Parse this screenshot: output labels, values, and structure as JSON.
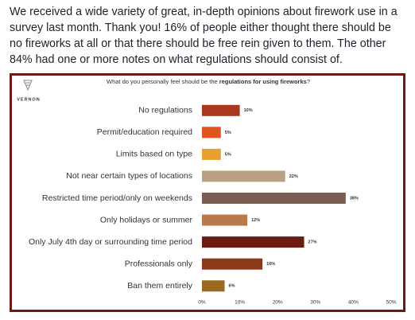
{
  "post": {
    "text": "We received a wide variety of great, in-depth opinions about firework use in a survey last month. Thank you! 16% of people either thought there should be no fireworks at all or that there should be free rein given to them. The other 84% had one or more notes on what regulations should consist of."
  },
  "logo": {
    "text": "VERNON"
  },
  "chart_data": {
    "type": "bar",
    "orientation": "horizontal",
    "title": [
      "What do you personally feel should be the ",
      "regulations for using fireworks",
      "?"
    ],
    "categories": [
      "No regulations",
      "Permit/education required",
      "Limits based on type",
      "Not near certain types of locations",
      "Restricted time period/only on weekends",
      "Only holidays or summer",
      "Only July 4th day or surrounding time period",
      "Professionals only",
      "Ban them entirely"
    ],
    "values": [
      10,
      5,
      5,
      22,
      38,
      12,
      27,
      16,
      6
    ],
    "value_labels": [
      "10%",
      "5%",
      "5%",
      "22%",
      "38%",
      "12%",
      "27%",
      "16%",
      "6%"
    ],
    "colors": [
      "#a9381f",
      "#e0541e",
      "#e8a030",
      "#b9a283",
      "#7b5d55",
      "#b97a4b",
      "#6b1d12",
      "#8b3a1a",
      "#9a6a20"
    ],
    "xlim": [
      0,
      50
    ],
    "xticks": [
      {
        "value": 0,
        "label": "0%"
      },
      {
        "value": 10,
        "label": "10%"
      },
      {
        "value": 20,
        "label": "20%"
      },
      {
        "value": 30,
        "label": "30%"
      },
      {
        "value": 40,
        "label": "40%"
      },
      {
        "value": 50,
        "label": "50%"
      }
    ],
    "grid": false
  }
}
